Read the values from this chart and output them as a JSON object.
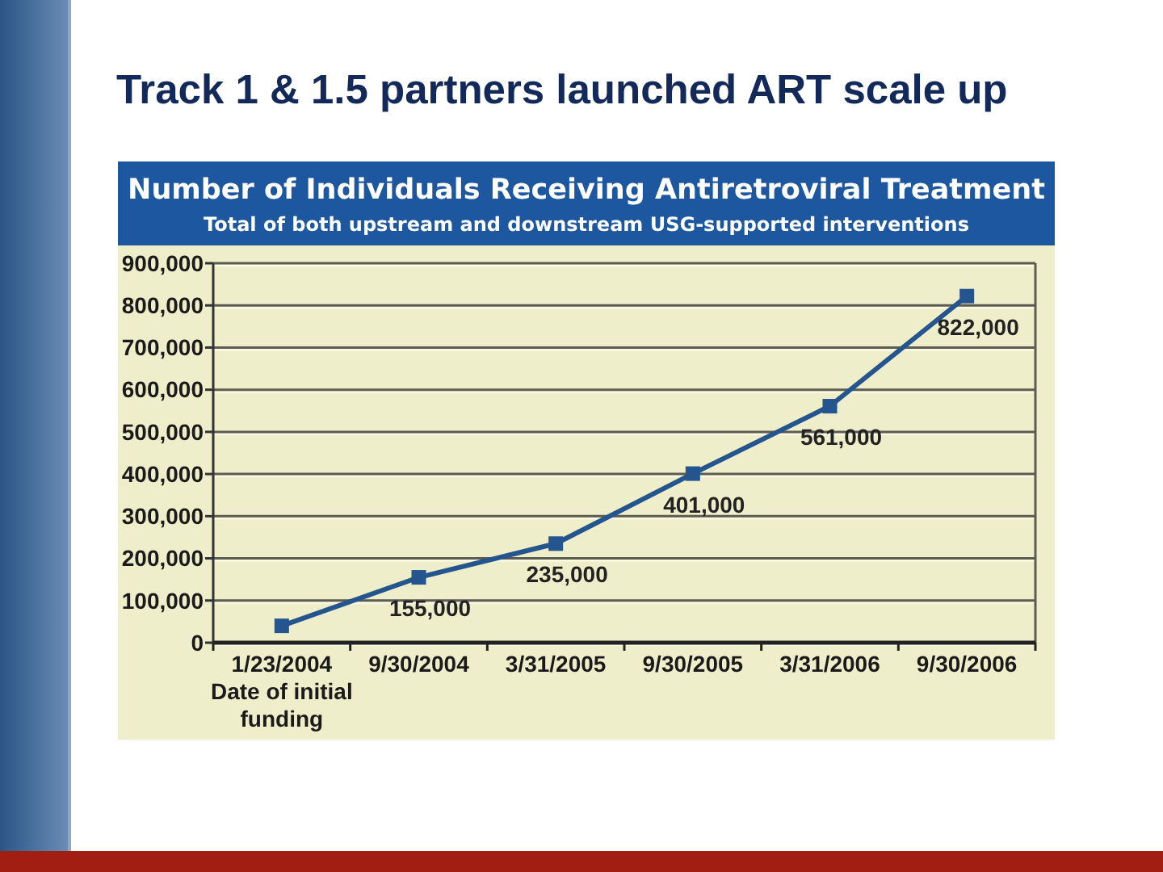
{
  "chart_data": {
    "type": "line",
    "title": "Number of Individuals Receiving Antiretroviral Treatment",
    "subtitle": "Total of both upstream and downstream USG-supported interventions",
    "annotations": [
      "Track 1 & 1.5 partners launched ART scale up"
    ],
    "categories": [
      "1/23/2004\nDate of initial\nfunding",
      "9/30/2004",
      "3/31/2005",
      "9/30/2005",
      "3/31/2006",
      "9/30/2006"
    ],
    "series": [
      {
        "color": "#24558f",
        "values": [
          40000,
          155000,
          235000,
          401000,
          561000,
          822000
        ],
        "value_labels": [
          null,
          "155,000",
          "235,000",
          "401,000",
          "561,000",
          "822,000"
        ]
      }
    ],
    "ylim": [
      0,
      900000
    ],
    "yticks": [
      0,
      {
        "value": 100000,
        "label": "100,000"
      },
      {
        "value": 200000,
        "label": "200,000"
      },
      {
        "value": 300000,
        "label": "300,000"
      },
      {
        "value": 400000,
        "label": "400,000"
      },
      {
        "value": 500000,
        "label": "500,000"
      },
      {
        "value": 600000,
        "label": "600,000"
      },
      {
        "value": 700000,
        "label": "700,000"
      },
      {
        "value": 800000,
        "label": "800,000"
      },
      {
        "value": 900000,
        "label": "900,000"
      }
    ],
    "grid": "y",
    "marker": "square",
    "line_style": "solid"
  }
}
